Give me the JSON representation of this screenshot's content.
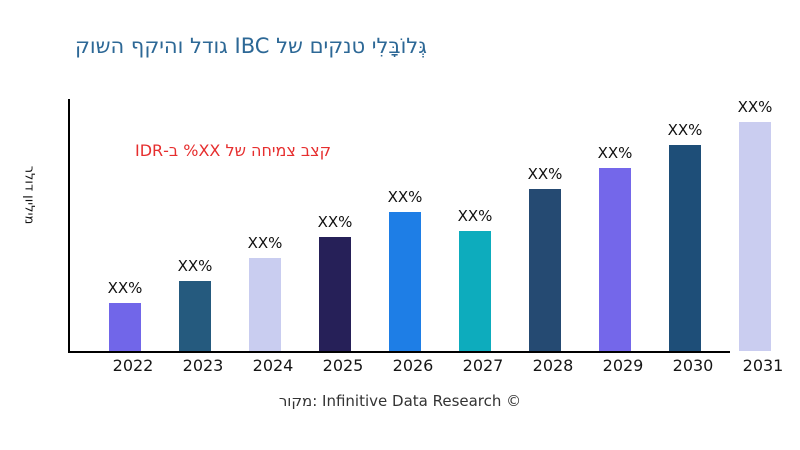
{
  "title": {
    "text": "גְּלוֹבָּלִי טנקים של IBC גודל והיקף השוק",
    "color": "#2d6896"
  },
  "annotation": {
    "text": "קצב צמיחה של XX% ב-IDR",
    "color": "#e62e2e"
  },
  "y_axis": {
    "label": "מיליון דולר"
  },
  "source": {
    "text": "מקור: Infinitive Data Research ©"
  },
  "chart_data": {
    "type": "bar",
    "title": "גלובלי טנקים של IBC גודל והיקף השוק",
    "ylabel": "מיליון דולר",
    "xlabel": "",
    "categories": [
      "2022",
      "2023",
      "2024",
      "2025",
      "2026",
      "2027",
      "2028",
      "2029",
      "2030",
      "2031"
    ],
    "bar_value_labels": [
      "XX%",
      "XX%",
      "XX%",
      "XX%",
      "XX%",
      "XX%",
      "XX%",
      "XX%",
      "XX%",
      "XX%"
    ],
    "values_note": "numeric values masked as XX% placeholders in the figure",
    "estimated_relative_heights": [
      48,
      70,
      93,
      114,
      139,
      120,
      162,
      183,
      206,
      229
    ],
    "bar_colors": [
      "#7166e9",
      "#255a7e",
      "#c9cdf0",
      "#262058",
      "#1e7ee6",
      "#0dacbd",
      "#254a72",
      "#7467ea",
      "#1e4e78",
      "#cacdf0"
    ],
    "annotation": "קצב צמיחה של XX% ב-IDR",
    "annotation_color": "#e62e2e",
    "source": "מקור: Infinitive Data Research ©",
    "grid": false,
    "legend": false,
    "y_ticks_visible": false,
    "axis_color": "#000000"
  }
}
